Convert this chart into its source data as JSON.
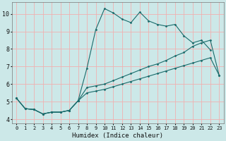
{
  "xlabel": "Humidex (Indice chaleur)",
  "bg_color": "#cce8e8",
  "grid_color": "#f0b0b0",
  "line_color": "#1a6b6b",
  "xlim": [
    -0.5,
    23.5
  ],
  "ylim": [
    3.75,
    10.65
  ],
  "xticks": [
    0,
    1,
    2,
    3,
    4,
    5,
    6,
    7,
    8,
    9,
    10,
    11,
    12,
    13,
    14,
    15,
    16,
    17,
    18,
    19,
    20,
    21,
    22,
    23
  ],
  "yticks": [
    4,
    5,
    6,
    7,
    8,
    9,
    10
  ],
  "line1_x": [
    0,
    1,
    2,
    3,
    4,
    5,
    6,
    7,
    8,
    9,
    10,
    11,
    12,
    13,
    14,
    15,
    16,
    17,
    18,
    19,
    20,
    21,
    22
  ],
  "line1_y": [
    5.2,
    4.6,
    4.55,
    4.3,
    4.4,
    4.4,
    4.5,
    5.05,
    6.9,
    9.1,
    10.3,
    10.05,
    9.7,
    9.5,
    10.1,
    9.6,
    9.4,
    9.3,
    9.4,
    8.75,
    8.35,
    8.5,
    7.95
  ],
  "line2_x": [
    0,
    1,
    2,
    3,
    4,
    5,
    6,
    7,
    8,
    9,
    10,
    11,
    12,
    13,
    14,
    15,
    16,
    17,
    18,
    19,
    20,
    21,
    22,
    23
  ],
  "line2_y": [
    5.2,
    4.6,
    4.55,
    4.3,
    4.4,
    4.4,
    4.5,
    5.05,
    5.8,
    5.9,
    6.0,
    6.2,
    6.4,
    6.6,
    6.8,
    7.0,
    7.15,
    7.35,
    7.6,
    7.8,
    8.15,
    8.35,
    8.5,
    6.5
  ],
  "line3_x": [
    0,
    1,
    2,
    3,
    4,
    5,
    6,
    7,
    8,
    9,
    10,
    11,
    12,
    13,
    14,
    15,
    16,
    17,
    18,
    19,
    20,
    21,
    22,
    23
  ],
  "line3_y": [
    5.2,
    4.6,
    4.55,
    4.3,
    4.4,
    4.4,
    4.5,
    5.05,
    5.5,
    5.6,
    5.7,
    5.85,
    6.0,
    6.15,
    6.3,
    6.45,
    6.6,
    6.75,
    6.9,
    7.05,
    7.2,
    7.35,
    7.5,
    6.5
  ]
}
